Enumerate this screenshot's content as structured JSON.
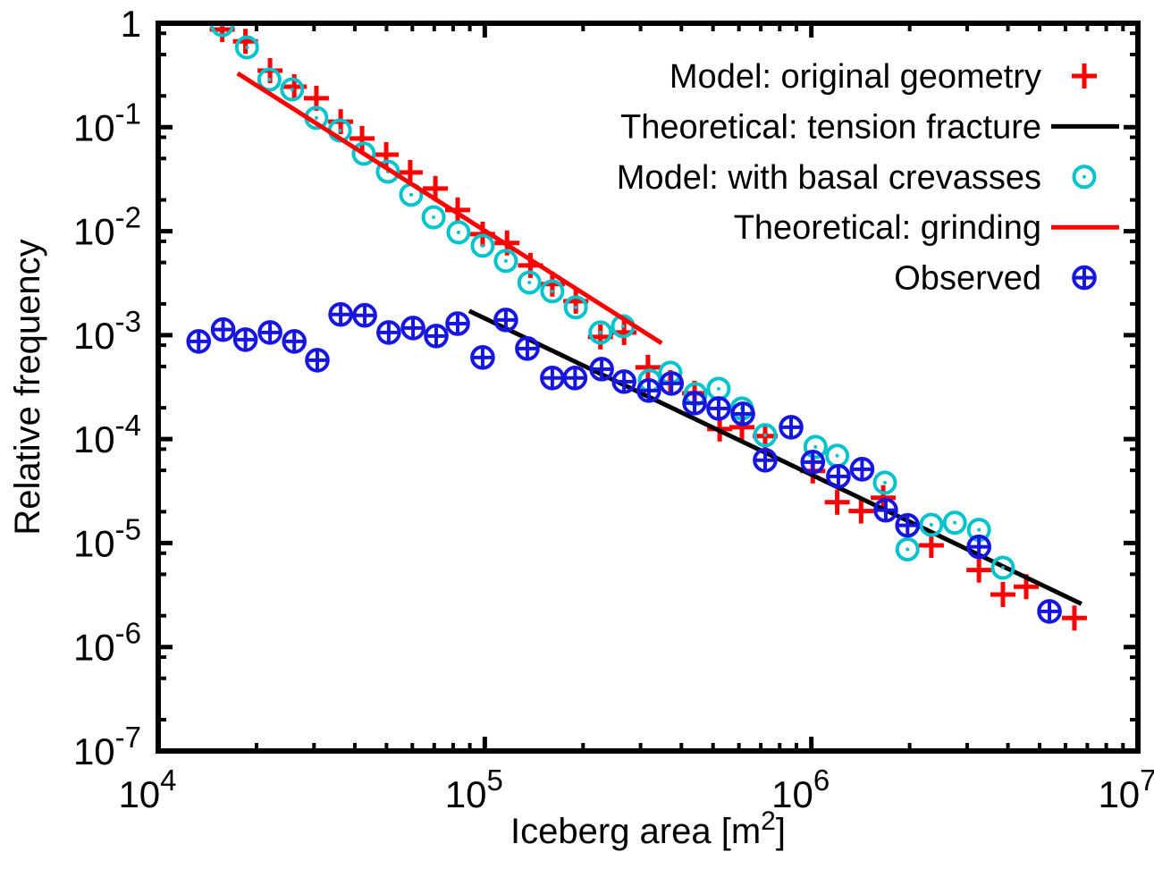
{
  "chart_data": {
    "type": "scatter",
    "xlabel_parts": {
      "main": "Iceberg area [m",
      "sup": "2",
      "end": "]"
    },
    "xlabel": "Iceberg area [m^2]",
    "ylabel": "Relative frequency",
    "xscale": "log",
    "yscale": "log",
    "xlim": [
      10000,
      10000000
    ],
    "ylim": [
      1e-07,
      1
    ],
    "x_major_exponents": [
      4,
      5,
      6,
      7
    ],
    "x_minor_multipliers": [
      2,
      3,
      4,
      5,
      6,
      7,
      8,
      9
    ],
    "y_major_exponents": [
      0,
      -1,
      -2,
      -3,
      -4,
      -5,
      -6,
      -7
    ],
    "y_minor_multipliers": [
      2,
      5,
      8
    ],
    "grid": false,
    "legend_position": "top-right",
    "colors": {
      "red": "#ff0000",
      "black": "#000000",
      "cyan": "#00c3cc",
      "blue": "#1616e0"
    },
    "series": [
      {
        "name": "Model: original geometry",
        "type": "points",
        "marker": "plus",
        "color": "#ff0000",
        "points": [
          [
            15700,
            0.87
          ],
          [
            18500,
            0.67
          ],
          [
            22000,
            0.35
          ],
          [
            26100,
            0.245
          ],
          [
            30500,
            0.19
          ],
          [
            36200,
            0.113
          ],
          [
            42100,
            0.078
          ],
          [
            49900,
            0.0545
          ],
          [
            59100,
            0.0367
          ],
          [
            70600,
            0.0257
          ],
          [
            82600,
            0.016
          ],
          [
            98500,
            0.00936
          ],
          [
            117000,
            0.0077
          ],
          [
            138000,
            0.00468
          ],
          [
            161000,
            0.0031
          ],
          [
            190000,
            0.00212
          ],
          [
            226000,
            0.00096
          ],
          [
            267000,
            0.00106
          ],
          [
            316000,
            0.00049
          ],
          [
            370000,
            0.00035
          ],
          [
            439000,
            0.000276
          ],
          [
            524000,
            0.000125
          ],
          [
            613000,
            0.00013
          ],
          [
            722000,
            0.000107
          ],
          [
            1010000,
            4.94e-05
          ],
          [
            1200000,
            2.47e-05
          ],
          [
            1420000,
            2.03e-05
          ],
          [
            1660000,
            2.73e-05
          ],
          [
            2330000,
            9.5e-06
          ],
          [
            3260000,
            5.5e-06
          ],
          [
            3860000,
            3.2e-06
          ],
          [
            4550000,
            3.8e-06
          ],
          [
            6390000,
            1.9e-06
          ]
        ]
      },
      {
        "name": "Theoretical: tension fracture",
        "type": "line",
        "color": "#000000",
        "points": [
          [
            89600,
            0.00171
          ],
          [
            6720000,
            2.6e-06
          ]
        ]
      },
      {
        "name": "Model: with basal crevasses",
        "type": "points",
        "marker": "circle-dot",
        "color": "#00c3cc",
        "points": [
          [
            15700,
            0.96
          ],
          [
            18700,
            0.586
          ],
          [
            21900,
            0.287
          ],
          [
            25700,
            0.231
          ],
          [
            30500,
            0.123
          ],
          [
            36000,
            0.093
          ],
          [
            42600,
            0.0556
          ],
          [
            50500,
            0.0374
          ],
          [
            59500,
            0.0224
          ],
          [
            69700,
            0.0136
          ],
          [
            83100,
            0.00974
          ],
          [
            98500,
            0.00724
          ],
          [
            116000,
            0.00517
          ],
          [
            137000,
            0.00321
          ],
          [
            161000,
            0.00264
          ],
          [
            190000,
            0.00185
          ],
          [
            226000,
            0.00106
          ],
          [
            265000,
            0.00122
          ],
          [
            320000,
            0.000365
          ],
          [
            370000,
            0.000435
          ],
          [
            442000,
            0.000271
          ],
          [
            520000,
            0.000305
          ],
          [
            613000,
            0.000197
          ],
          [
            722000,
            0.000109
          ],
          [
            1030000,
            8.42e-05
          ],
          [
            1200000,
            6.91e-05
          ],
          [
            1680000,
            3.81e-05
          ],
          [
            1970000,
            8.7e-06
          ],
          [
            2330000,
            1.5e-05
          ],
          [
            2750000,
            1.57e-05
          ],
          [
            3260000,
            1.34e-05
          ],
          [
            3860000,
            5.8e-06
          ]
        ]
      },
      {
        "name": "Theoretical: grinding",
        "type": "line",
        "color": "#ff0000",
        "points": [
          [
            17500,
            0.33
          ],
          [
            348000,
            0.000836
          ]
        ]
      },
      {
        "name": "Observed",
        "type": "points",
        "marker": "circle-plus",
        "color": "#1616e0",
        "points": [
          [
            13300,
            0.00087
          ],
          [
            15800,
            0.00113
          ],
          [
            18500,
            0.000905
          ],
          [
            22000,
            0.00106
          ],
          [
            26100,
            0.00087
          ],
          [
            30700,
            0.000574
          ],
          [
            36200,
            0.00158
          ],
          [
            42900,
            0.00155
          ],
          [
            50800,
            0.00106
          ],
          [
            60300,
            0.00117
          ],
          [
            71000,
            0.00098
          ],
          [
            82600,
            0.00129
          ],
          [
            98500,
            0.00061
          ],
          [
            116000,
            0.0014
          ],
          [
            135000,
            0.000743
          ],
          [
            161000,
            0.000387
          ],
          [
            189000,
            0.000387
          ],
          [
            228000,
            0.000471
          ],
          [
            267000,
            0.000357
          ],
          [
            318000,
            0.000293
          ],
          [
            373000,
            0.000343
          ],
          [
            439000,
            0.000222
          ],
          [
            520000,
            0.000197
          ],
          [
            617000,
            0.000175
          ],
          [
            722000,
            6.26e-05
          ],
          [
            867000,
            0.00013
          ],
          [
            1010000,
            6.01e-05
          ],
          [
            1210000,
            4.38e-05
          ],
          [
            1430000,
            5.13e-05
          ],
          [
            1690000,
            2.07e-05
          ],
          [
            1970000,
            1.48e-05
          ],
          [
            3260000,
            9.2e-06
          ],
          [
            5360000,
            2.2e-06
          ]
        ]
      }
    ],
    "legend_entries": [
      {
        "series": 0,
        "label": "Model: original geometry"
      },
      {
        "series": 1,
        "label": "Theoretical: tension fracture"
      },
      {
        "series": 2,
        "label": "Model: with basal crevasses"
      },
      {
        "series": 3,
        "label": "Theoretical: grinding"
      },
      {
        "series": 4,
        "label": "Observed"
      }
    ]
  }
}
